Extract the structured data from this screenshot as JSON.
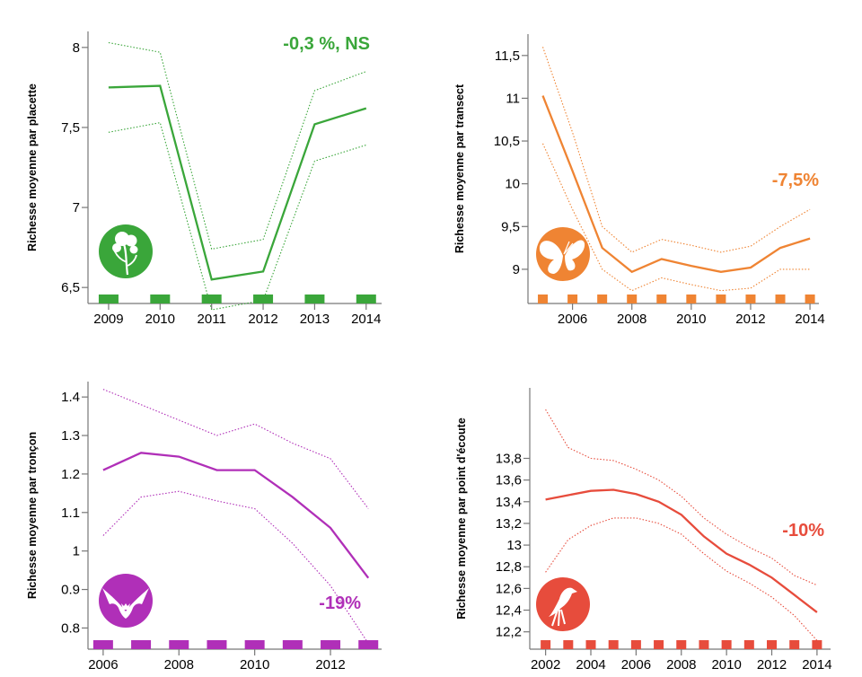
{
  "chart_data": [
    {
      "id": "plants",
      "type": "line",
      "ylabel": "Richesse moyenne par placette",
      "annotation": "-0,3 %, NS",
      "color": "#3aa63a",
      "ylim": [
        6.4,
        8.1
      ],
      "yticks": [
        6.5,
        7,
        7.5,
        8
      ],
      "ytick_labels": [
        "6,5",
        "7",
        "7,5",
        "8"
      ],
      "xlim": [
        2008.6,
        2014.3
      ],
      "xticks": [
        2009,
        2010,
        2011,
        2012,
        2013,
        2014
      ],
      "xtick_labels": [
        "2009",
        "2010",
        "2011",
        "2012",
        "2013",
        "2014"
      ],
      "markers": [
        2009,
        2010,
        2011,
        2012,
        2013,
        2014
      ],
      "icon": "flower-icon",
      "series": [
        {
          "name": "mean",
          "style": "solid",
          "x": [
            2009,
            2010,
            2011,
            2012,
            2013,
            2014
          ],
          "y": [
            7.75,
            7.76,
            6.55,
            6.6,
            7.52,
            7.62
          ]
        },
        {
          "name": "upper",
          "style": "dotted",
          "x": [
            2009,
            2010,
            2011,
            2012,
            2013,
            2014
          ],
          "y": [
            8.03,
            7.97,
            6.74,
            6.8,
            7.73,
            7.85
          ]
        },
        {
          "name": "lower",
          "style": "dotted",
          "x": [
            2009,
            2010,
            2011,
            2012,
            2013,
            2014
          ],
          "y": [
            7.47,
            7.53,
            6.36,
            6.42,
            7.29,
            7.39
          ]
        }
      ]
    },
    {
      "id": "butterflies",
      "type": "line",
      "ylabel": "Richesse moyenne par transect",
      "annotation": "-7,5%",
      "color": "#ef8433",
      "ylim": [
        8.6,
        11.75
      ],
      "yticks": [
        9,
        9.5,
        10,
        10.5,
        11,
        11.5
      ],
      "ytick_labels": [
        "9",
        "9,5",
        "10",
        "10,5",
        "11",
        "11,5"
      ],
      "xlim": [
        2004.5,
        2014.3
      ],
      "xticks": [
        2006,
        2008,
        2010,
        2012,
        2014
      ],
      "xtick_labels": [
        "2006",
        "2008",
        "2010",
        "2012",
        "2014"
      ],
      "markers": [
        2005,
        2006,
        2007,
        2008,
        2009,
        2010,
        2011,
        2012,
        2013,
        2014
      ],
      "icon": "butterfly-icon",
      "series": [
        {
          "name": "mean",
          "style": "solid",
          "x": [
            2005,
            2006,
            2007,
            2008,
            2009,
            2010,
            2011,
            2012,
            2013,
            2014
          ],
          "y": [
            11.03,
            10.15,
            9.25,
            8.97,
            9.12,
            9.04,
            8.97,
            9.02,
            9.25,
            9.36
          ]
        },
        {
          "name": "upper",
          "style": "dotted",
          "x": [
            2005,
            2006,
            2007,
            2008,
            2009,
            2010,
            2011,
            2012,
            2013,
            2014
          ],
          "y": [
            11.6,
            10.6,
            9.5,
            9.2,
            9.35,
            9.28,
            9.2,
            9.27,
            9.5,
            9.7
          ]
        },
        {
          "name": "lower",
          "style": "dotted",
          "x": [
            2005,
            2006,
            2007,
            2008,
            2009,
            2010,
            2011,
            2012,
            2013,
            2014
          ],
          "y": [
            10.47,
            9.7,
            9.0,
            8.75,
            8.9,
            8.82,
            8.75,
            8.78,
            9.0,
            9.0
          ]
        }
      ]
    },
    {
      "id": "bats",
      "type": "line",
      "ylabel": "Richesse moyenne par tronçon",
      "annotation": "-19%",
      "color": "#b02fb8",
      "ylim": [
        0.745,
        1.44
      ],
      "yticks": [
        0.8,
        0.9,
        1,
        1.1,
        1.2,
        1.3,
        1.4
      ],
      "ytick_labels": [
        "0.8",
        "0.9",
        "1",
        "1.1",
        "1.2",
        "1.3",
        "1.4"
      ],
      "xlim": [
        2005.6,
        2013.35
      ],
      "xticks": [
        2006,
        2008,
        2010,
        2012
      ],
      "xtick_labels": [
        "2006",
        "2008",
        "2010",
        "2012"
      ],
      "markers": [
        2006,
        2007,
        2008,
        2009,
        2010,
        2011,
        2012,
        2013
      ],
      "icon": "bat-icon",
      "series": [
        {
          "name": "mean",
          "style": "solid",
          "x": [
            2006,
            2007,
            2008,
            2009,
            2010,
            2011,
            2012,
            2013
          ],
          "y": [
            1.21,
            1.255,
            1.245,
            1.21,
            1.21,
            1.14,
            1.06,
            0.93
          ]
        },
        {
          "name": "upper",
          "style": "dotted",
          "x": [
            2006,
            2007,
            2008,
            2009,
            2010,
            2011,
            2012,
            2013
          ],
          "y": [
            1.42,
            1.38,
            1.34,
            1.3,
            1.33,
            1.28,
            1.24,
            1.11
          ]
        },
        {
          "name": "lower",
          "style": "dotted",
          "x": [
            2006,
            2007,
            2008,
            2009,
            2010,
            2011,
            2012,
            2013
          ],
          "y": [
            1.04,
            1.14,
            1.155,
            1.13,
            1.11,
            1.02,
            0.91,
            0.76
          ]
        }
      ]
    },
    {
      "id": "birds",
      "type": "line",
      "ylabel": "Richesse moyenne par point d'écoute",
      "annotation": "-10%",
      "color": "#e74c3c",
      "ylim": [
        12.04,
        14.45
      ],
      "yticks": [
        12.2,
        12.4,
        12.6,
        12.8,
        13,
        13.2,
        13.4,
        13.6,
        13.8
      ],
      "ytick_labels": [
        "12,2",
        "12,4",
        "12,6",
        "12,8",
        "13",
        "13,2",
        "13,4",
        "13,6",
        "13,8"
      ],
      "xlim": [
        2001.3,
        2014.6
      ],
      "xticks": [
        2002,
        2004,
        2006,
        2008,
        2010,
        2012,
        2014
      ],
      "xtick_labels": [
        "2002",
        "2004",
        "2006",
        "2008",
        "2010",
        "2012",
        "2014"
      ],
      "markers": [
        2002,
        2003,
        2004,
        2005,
        2006,
        2007,
        2008,
        2009,
        2010,
        2011,
        2012,
        2013,
        2014
      ],
      "icon": "bird-icon",
      "series": [
        {
          "name": "mean",
          "style": "solid",
          "x": [
            2002,
            2003,
            2004,
            2005,
            2006,
            2007,
            2008,
            2009,
            2010,
            2011,
            2012,
            2013,
            2014
          ],
          "y": [
            13.42,
            13.46,
            13.5,
            13.51,
            13.47,
            13.4,
            13.28,
            13.08,
            12.92,
            12.82,
            12.7,
            12.54,
            12.38
          ]
        },
        {
          "name": "upper",
          "style": "dotted",
          "x": [
            2002,
            2003,
            2004,
            2005,
            2006,
            2007,
            2008,
            2009,
            2010,
            2011,
            2012,
            2013,
            2014
          ],
          "y": [
            14.25,
            13.9,
            13.8,
            13.78,
            13.7,
            13.6,
            13.45,
            13.25,
            13.1,
            12.98,
            12.88,
            12.72,
            12.63
          ]
        },
        {
          "name": "lower",
          "style": "dotted",
          "x": [
            2002,
            2003,
            2004,
            2005,
            2006,
            2007,
            2008,
            2009,
            2010,
            2011,
            2012,
            2013,
            2014
          ],
          "y": [
            12.75,
            13.05,
            13.18,
            13.25,
            13.25,
            13.2,
            13.1,
            12.92,
            12.76,
            12.65,
            12.52,
            12.35,
            12.12
          ]
        }
      ]
    }
  ]
}
